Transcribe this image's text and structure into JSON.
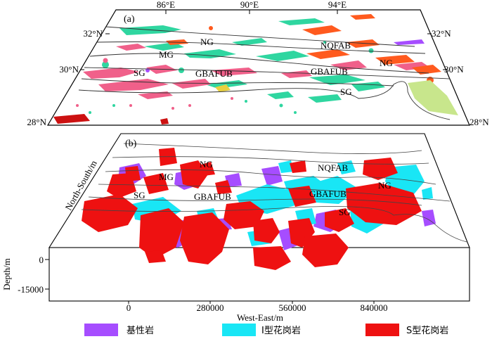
{
  "panel_a": {
    "label": "(a)",
    "lon_ticks": [
      "86°E",
      "90°E",
      "94°E"
    ],
    "lat_left": [
      "32°N",
      "30°N",
      "28°N"
    ],
    "lat_right": [
      "32°N",
      "30°N",
      "28°N"
    ],
    "units": [
      "NG",
      "MG",
      "NQFAB",
      "SG",
      "GBAFUB",
      "GBAFUB",
      "NG",
      "SG"
    ]
  },
  "panel_b": {
    "label": "(b)",
    "ylabel": "North-South/m",
    "zlabel": "Depth/m",
    "z_ticks": [
      "0",
      "-15000"
    ],
    "x_ticks": [
      "0",
      "280000",
      "560000",
      "840000"
    ],
    "xlabel": "West-East/m",
    "units": [
      "NG",
      "MG",
      "NQFAB",
      "SG",
      "GBAFUB",
      "GBAFUB",
      "NG",
      "SG"
    ]
  },
  "legend": {
    "items": [
      {
        "label": "基性岩",
        "color": "#a64dff"
      },
      {
        "label": "I型花岗岩",
        "color": "#19e6f5"
      },
      {
        "label": "S型花岗岩",
        "color": "#ee1111"
      }
    ]
  },
  "colors": {
    "mafic": "#a64dff",
    "i_granite": "#19e6f5",
    "s_granite": "#ee1111",
    "map_green": "#2fd6a0",
    "map_pink": "#f0608a",
    "map_orange": "#ff5a1e",
    "map_lime": "#c8e68c"
  }
}
